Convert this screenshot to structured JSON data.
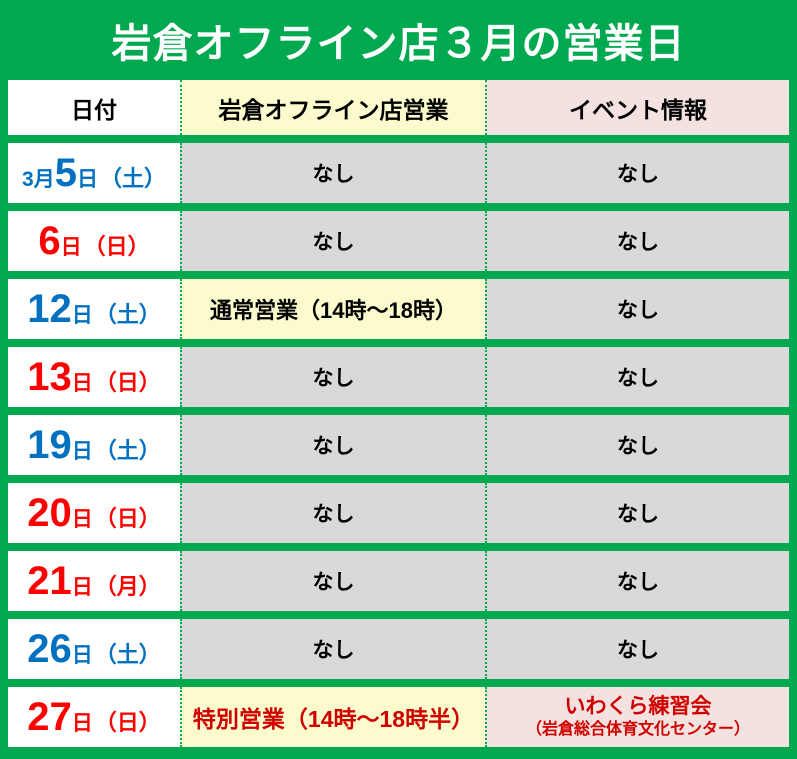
{
  "title": "岩倉オフライン店３月の営業日",
  "colors": {
    "frame_green": "#00a94f",
    "cell_gray": "#d9d9d9",
    "cell_yellow": "#fbfbce",
    "cell_pink": "#f3e2e0",
    "saturday_blue": "#0070c0",
    "sunday_red": "#ff0000",
    "special_red": "#d00000",
    "banner_text": "#ffffff"
  },
  "table": {
    "headers": {
      "date": "日付",
      "store": "岩倉オフライン店営業",
      "event": "イベント情報"
    },
    "rows": [
      {
        "month": "3月",
        "day": "5",
        "day_unit": "日",
        "weekday": "（土）",
        "store": "なし",
        "event": "なし"
      },
      {
        "month": "",
        "day": "6",
        "day_unit": "日",
        "weekday": "（日）",
        "store": "なし",
        "event": "なし"
      },
      {
        "month": "",
        "day": "12",
        "day_unit": "日",
        "weekday": "（土）",
        "store": "通常営業（14時～18時）",
        "event": "なし"
      },
      {
        "month": "",
        "day": "13",
        "day_unit": "日",
        "weekday": "（日）",
        "store": "なし",
        "event": "なし"
      },
      {
        "month": "",
        "day": "19",
        "day_unit": "日",
        "weekday": "（土）",
        "store": "なし",
        "event": "なし"
      },
      {
        "month": "",
        "day": "20",
        "day_unit": "日",
        "weekday": "（日）",
        "store": "なし",
        "event": "なし"
      },
      {
        "month": "",
        "day": "21",
        "day_unit": "日",
        "weekday": "（月）",
        "store": "なし",
        "event": "なし"
      },
      {
        "month": "",
        "day": "26",
        "day_unit": "日",
        "weekday": "（土）",
        "store": "なし",
        "event": "なし"
      },
      {
        "month": "",
        "day": "27",
        "day_unit": "日",
        "weekday": "（日）",
        "store": "特別営業（14時～18時半）",
        "event_line1": "いわくら練習会",
        "event_line2": "（岩倉総合体育文化センター）"
      }
    ]
  }
}
